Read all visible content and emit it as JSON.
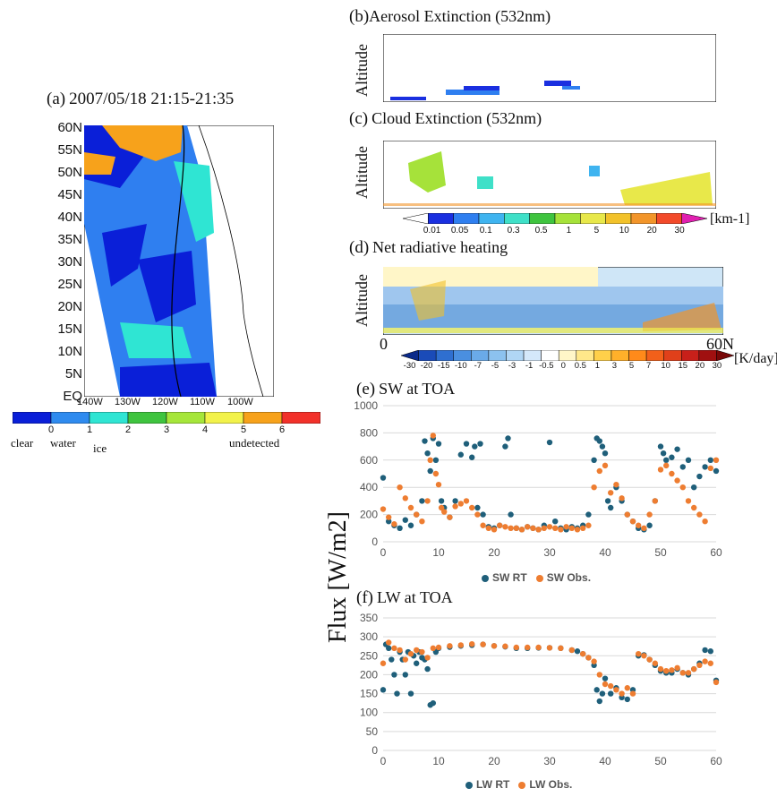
{
  "panel_a": {
    "label": "(a)",
    "datetime": "2007/05/18 21:15-21:35",
    "lat_ticks": [
      "60N",
      "55N",
      "50N",
      "45N",
      "40N",
      "35N",
      "30N",
      "25N",
      "20N",
      "15N",
      "10N",
      "5N",
      "EQ"
    ],
    "lon_ticks": [
      "140W",
      "130W",
      "120W",
      "110W",
      "100W"
    ],
    "colorbar_ticks": [
      "0",
      "1",
      "2",
      "3",
      "4",
      "5",
      "6"
    ],
    "colorbar_colors": [
      "#0a1fd8",
      "#2f8bef",
      "#2fe5d3",
      "#3fc43f",
      "#a6e63a",
      "#f2f24a",
      "#f7a21b",
      "#f2312a"
    ],
    "class_labels": [
      "clear",
      "water",
      "ice",
      "undetected"
    ]
  },
  "panel_b": {
    "label": "(b)",
    "title": "Aerosol Extinction (532nm)",
    "ylabel": "Altitude"
  },
  "panel_c": {
    "label": "(c)",
    "title": "Cloud Extinction (532nm)",
    "ylabel": "Altitude",
    "colorbar_ticks": [
      "0.01",
      "0.05",
      "0.1",
      "0.3",
      "0.5",
      "1",
      "5",
      "10",
      "20",
      "30"
    ],
    "units": "[km-1]",
    "colorbar_colors": [
      "#ffffff",
      "#1a2fe0",
      "#2f7ff0",
      "#3fb4f0",
      "#3fe0c8",
      "#3fc43f",
      "#a6e23a",
      "#e8e84a",
      "#f2c22a",
      "#f2952a",
      "#f24a2a",
      "#e020b0"
    ]
  },
  "panel_d": {
    "label": "(d)",
    "title": "Net radiative heating",
    "ylabel": "Altitude",
    "axis_left": "0",
    "axis_right": "60N",
    "colorbar_ticks": [
      "-30",
      "-20",
      "-15",
      "-10",
      "-7",
      "-5",
      "-3",
      "-1",
      "-0.5",
      "0",
      "0.5",
      "1",
      "3",
      "5",
      "7",
      "10",
      "15",
      "20",
      "30"
    ],
    "units": "[K/day]"
  },
  "common": {
    "ylabel": "Flux [W/m2]"
  },
  "chart_data": [
    {
      "type": "scatter",
      "title": "SW at TOA",
      "label": "(e)",
      "xlim": [
        0,
        60
      ],
      "ylim": [
        0,
        1000
      ],
      "xticks": [
        0,
        10,
        20,
        30,
        40,
        50,
        60
      ],
      "yticks": [
        0,
        200,
        400,
        600,
        800,
        1000
      ],
      "series": [
        {
          "name": "SW RT",
          "color": "#1f5f7a",
          "x": [
            0,
            1,
            2,
            3,
            4,
            5,
            6,
            7,
            7.5,
            8,
            8.5,
            9,
            9.5,
            10,
            10.5,
            11,
            12,
            13,
            14,
            15,
            16,
            16.5,
            17,
            17.5,
            18,
            19,
            20,
            21,
            22,
            22.5,
            23,
            24,
            25,
            26,
            27,
            28,
            29,
            30,
            31,
            32,
            33,
            34,
            35,
            36,
            37,
            38,
            38.5,
            39,
            39.5,
            40,
            40.5,
            41,
            42,
            43,
            44,
            45,
            46,
            47,
            48,
            49,
            50,
            50.5,
            51,
            52,
            53,
            54,
            55,
            56,
            57,
            58,
            59,
            60
          ],
          "y": [
            470,
            150,
            120,
            100,
            160,
            120,
            200,
            300,
            740,
            650,
            520,
            760,
            600,
            720,
            300,
            250,
            180,
            300,
            640,
            720,
            620,
            700,
            250,
            720,
            200,
            110,
            100,
            120,
            700,
            760,
            200,
            100,
            90,
            110,
            100,
            90,
            120,
            730,
            150,
            100,
            90,
            110,
            100,
            120,
            200,
            600,
            760,
            740,
            700,
            650,
            300,
            250,
            400,
            300,
            200,
            150,
            100,
            90,
            120,
            300,
            700,
            650,
            600,
            620,
            680,
            550,
            600,
            400,
            480,
            550,
            600,
            520
          ]
        },
        {
          "name": "SW Obs.",
          "color": "#ee7d31",
          "x": [
            0,
            1,
            2,
            3,
            4,
            5,
            6,
            7,
            8,
            8.5,
            9,
            9.5,
            10,
            10.5,
            11,
            12,
            13,
            14,
            15,
            16,
            17,
            18,
            19,
            20,
            21,
            22,
            23,
            24,
            25,
            26,
            27,
            28,
            29,
            30,
            31,
            32,
            33,
            34,
            35,
            36,
            37,
            38,
            39,
            40,
            41,
            42,
            43,
            44,
            45,
            46,
            47,
            48,
            49,
            50,
            51,
            52,
            53,
            54,
            55,
            56,
            57,
            58,
            59,
            60
          ],
          "y": [
            240,
            180,
            130,
            400,
            320,
            250,
            200,
            150,
            300,
            600,
            780,
            500,
            420,
            250,
            220,
            180,
            260,
            280,
            300,
            250,
            200,
            120,
            100,
            90,
            120,
            110,
            100,
            100,
            90,
            110,
            100,
            90,
            100,
            110,
            100,
            90,
            110,
            100,
            90,
            100,
            120,
            400,
            520,
            560,
            360,
            420,
            320,
            200,
            150,
            120,
            100,
            200,
            300,
            530,
            560,
            500,
            450,
            400,
            300,
            250,
            200,
            150,
            540,
            600
          ]
        }
      ]
    },
    {
      "type": "scatter",
      "title": "LW at TOA",
      "label": "(f)",
      "xlim": [
        0,
        60
      ],
      "ylim": [
        0,
        350
      ],
      "xticks": [
        0,
        10,
        20,
        30,
        40,
        50,
        60
      ],
      "yticks": [
        0,
        50,
        100,
        150,
        200,
        250,
        300,
        350
      ],
      "series": [
        {
          "name": "LW RT",
          "color": "#1f5f7a",
          "x": [
            0,
            0.5,
            1,
            1.5,
            2,
            2.5,
            3,
            3.5,
            4,
            4.5,
            5,
            5.5,
            6,
            6.5,
            7,
            7.5,
            8,
            8.5,
            9,
            9.5,
            10,
            12,
            14,
            16,
            18,
            20,
            22,
            24,
            26,
            28,
            30,
            32,
            34,
            35,
            36,
            37,
            38,
            38.5,
            39,
            39.5,
            40,
            41,
            42,
            43,
            44,
            45,
            46,
            47,
            48,
            49,
            50,
            51,
            52,
            53,
            54,
            55,
            56,
            57,
            58,
            59,
            60
          ],
          "y": [
            160,
            280,
            270,
            240,
            200,
            150,
            260,
            240,
            200,
            260,
            150,
            250,
            230,
            260,
            245,
            240,
            215,
            120,
            125,
            260,
            270,
            273,
            276,
            278,
            280,
            276,
            274,
            270,
            270,
            271,
            271,
            270,
            265,
            262,
            255,
            245,
            225,
            160,
            130,
            150,
            190,
            150,
            165,
            140,
            135,
            160,
            250,
            252,
            240,
            225,
            210,
            205,
            205,
            215,
            205,
            200,
            215,
            230,
            265,
            262,
            185
          ]
        },
        {
          "name": "LW Obs.",
          "color": "#ee7d31",
          "x": [
            0,
            1,
            2,
            3,
            4,
            5,
            6,
            7,
            8,
            9,
            10,
            12,
            14,
            16,
            18,
            20,
            22,
            24,
            26,
            28,
            30,
            32,
            34,
            36,
            37,
            38,
            39,
            40,
            41,
            42,
            43,
            44,
            45,
            46,
            47,
            48,
            49,
            50,
            51,
            52,
            53,
            54,
            55,
            56,
            57,
            58,
            59,
            60
          ],
          "y": [
            230,
            285,
            270,
            265,
            240,
            255,
            265,
            260,
            245,
            270,
            272,
            276,
            278,
            281,
            280,
            276,
            275,
            272,
            272,
            272,
            271,
            270,
            265,
            255,
            245,
            235,
            200,
            175,
            170,
            160,
            150,
            165,
            150,
            255,
            250,
            240,
            230,
            215,
            210,
            212,
            218,
            205,
            205,
            215,
            225,
            235,
            230,
            180
          ]
        }
      ]
    }
  ]
}
